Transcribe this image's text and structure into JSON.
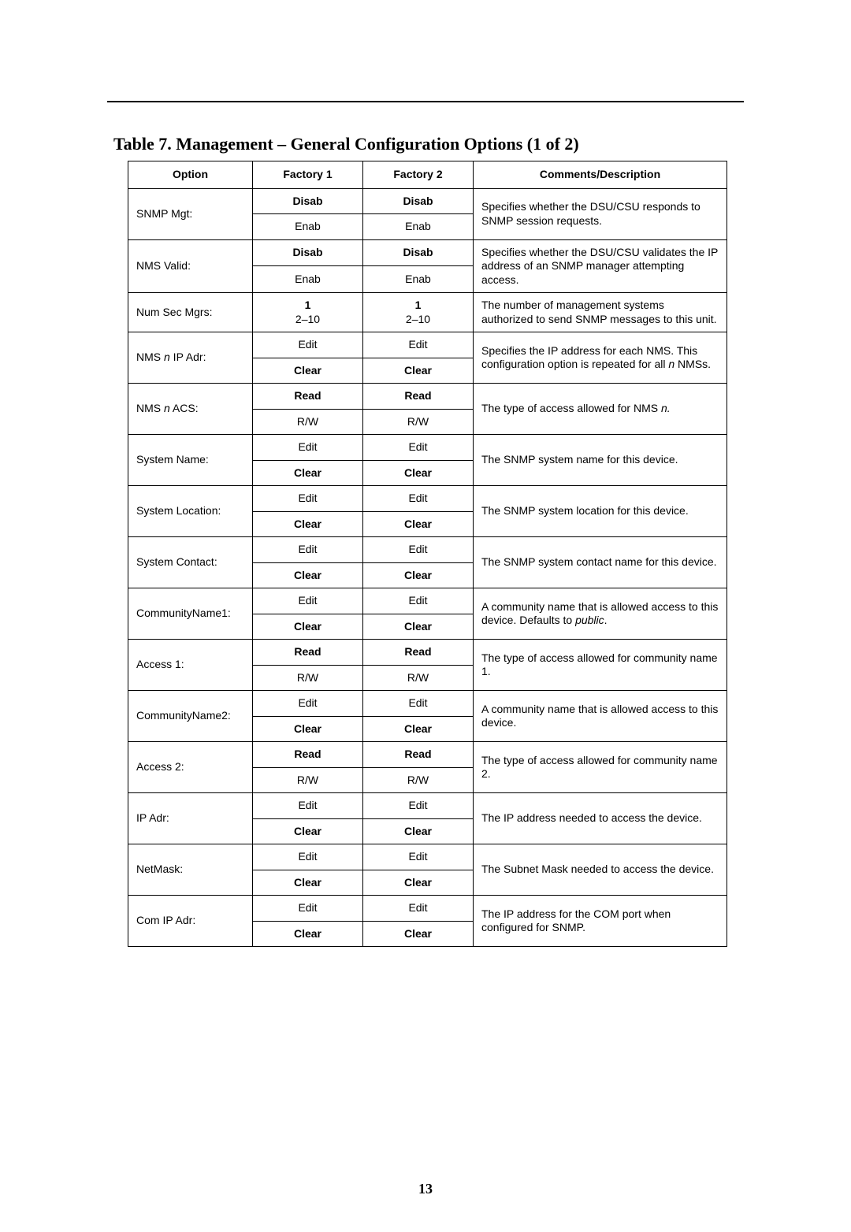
{
  "caption": "Table 7.   Management – General Configuration Options (1 of 2)",
  "headers": {
    "option": "Option",
    "factory1": "Factory 1",
    "factory2": "Factory 2",
    "comments": "Comments/Description"
  },
  "rows": [
    {
      "option_html": "SNMP Mgt:",
      "desc_html": "Specifies whether the DSU/CSU responds to SNMP session requests.",
      "values": [
        {
          "f1_html": "<span class=\"b\">Disab</span>",
          "f2_html": "<span class=\"b\">Disab</span>"
        },
        {
          "f1_html": "Enab",
          "f2_html": "Enab"
        }
      ]
    },
    {
      "option_html": "NMS Valid:",
      "desc_html": "Specifies whether the DSU/CSU validates the IP address of an SNMP manager attempting access.",
      "values": [
        {
          "f1_html": "<span class=\"b\">Disab</span>",
          "f2_html": "<span class=\"b\">Disab</span>"
        },
        {
          "f1_html": "Enab",
          "f2_html": "Enab"
        }
      ]
    },
    {
      "option_html": "Num Sec Mgrs:",
      "desc_html": "The number of management systems authorized to send SNMP messages to this unit.",
      "values": [
        {
          "f1_html": "<span class=\"b\">1</span><br>2–10",
          "f2_html": "<span class=\"b\">1</span><br>2–10"
        }
      ]
    },
    {
      "option_html": "NMS <span class=\"i\">n</span> IP Adr:",
      "desc_html": "Specifies the IP address for each NMS. This configuration option is repeated for all <span class=\"i\">n</span> NMSs.",
      "values": [
        {
          "f1_html": "Edit",
          "f2_html": "Edit"
        },
        {
          "f1_html": "<span class=\"b\">Clear</span>",
          "f2_html": "<span class=\"b\">Clear</span>"
        }
      ]
    },
    {
      "option_html": "NMS <span class=\"i\">n</span> ACS:",
      "desc_html": "The type of access allowed for NMS <span class=\"i\">n.</span>",
      "values": [
        {
          "f1_html": "<span class=\"b\">Read</span>",
          "f2_html": "<span class=\"b\">Read</span>"
        },
        {
          "f1_html": "R/W",
          "f2_html": "R/W"
        }
      ]
    },
    {
      "option_html": "System Name:",
      "desc_html": "The SNMP system name for this device.",
      "values": [
        {
          "f1_html": "Edit",
          "f2_html": "Edit"
        },
        {
          "f1_html": "<span class=\"b\">Clear</span>",
          "f2_html": "<span class=\"b\">Clear</span>"
        }
      ]
    },
    {
      "option_html": "System Location:",
      "desc_html": "The SNMP system location for this device.",
      "values": [
        {
          "f1_html": "Edit",
          "f2_html": "Edit"
        },
        {
          "f1_html": "<span class=\"b\">Clear</span>",
          "f2_html": "<span class=\"b\">Clear</span>"
        }
      ]
    },
    {
      "option_html": "System Contact:",
      "desc_html": "The SNMP system contact name for this device.",
      "values": [
        {
          "f1_html": "Edit",
          "f2_html": "Edit"
        },
        {
          "f1_html": "<span class=\"b\">Clear</span>",
          "f2_html": "<span class=\"b\">Clear</span>"
        }
      ]
    },
    {
      "option_html": "CommunityName1:",
      "desc_html": "A community name that is allowed access to this device. Defaults to <span class=\"i\">public</span>.",
      "values": [
        {
          "f1_html": "Edit",
          "f2_html": "Edit"
        },
        {
          "f1_html": "<span class=\"b\">Clear</span>",
          "f2_html": "<span class=\"b\">Clear</span>"
        }
      ]
    },
    {
      "option_html": "Access 1:",
      "desc_html": "The type of access allowed for community name 1.",
      "values": [
        {
          "f1_html": "<span class=\"b\">Read</span>",
          "f2_html": "<span class=\"b\">Read</span>"
        },
        {
          "f1_html": "R/W",
          "f2_html": "R/W"
        }
      ]
    },
    {
      "option_html": "CommunityName2:",
      "desc_html": "A community name that is allowed access to this device.",
      "values": [
        {
          "f1_html": "Edit",
          "f2_html": "Edit"
        },
        {
          "f1_html": "<span class=\"b\">Clear</span>",
          "f2_html": "<span class=\"b\">Clear</span>"
        }
      ]
    },
    {
      "option_html": "Access 2:",
      "desc_html": "The type of access allowed for community name 2.",
      "values": [
        {
          "f1_html": "<span class=\"b\">Read</span>",
          "f2_html": "<span class=\"b\">Read</span>"
        },
        {
          "f1_html": "R/W",
          "f2_html": "R/W"
        }
      ]
    },
    {
      "option_html": "IP Adr:",
      "desc_html": "The IP address needed to access the device.",
      "values": [
        {
          "f1_html": "Edit",
          "f2_html": "Edit"
        },
        {
          "f1_html": "<span class=\"b\">Clear</span>",
          "f2_html": "<span class=\"b\">Clear</span>"
        }
      ]
    },
    {
      "option_html": "NetMask:",
      "desc_html": "The Subnet Mask needed to access the device.",
      "values": [
        {
          "f1_html": "Edit",
          "f2_html": "Edit"
        },
        {
          "f1_html": "<span class=\"b\">Clear</span>",
          "f2_html": "<span class=\"b\">Clear</span>"
        }
      ]
    },
    {
      "option_html": "Com IP Adr:",
      "desc_html": "The IP address for the COM port when configured for SNMP.",
      "values": [
        {
          "f1_html": "Edit",
          "f2_html": "Edit"
        },
        {
          "f1_html": "<span class=\"b\">Clear</span>",
          "f2_html": "<span class=\"b\">Clear</span>"
        }
      ]
    }
  ],
  "page_number": "13"
}
